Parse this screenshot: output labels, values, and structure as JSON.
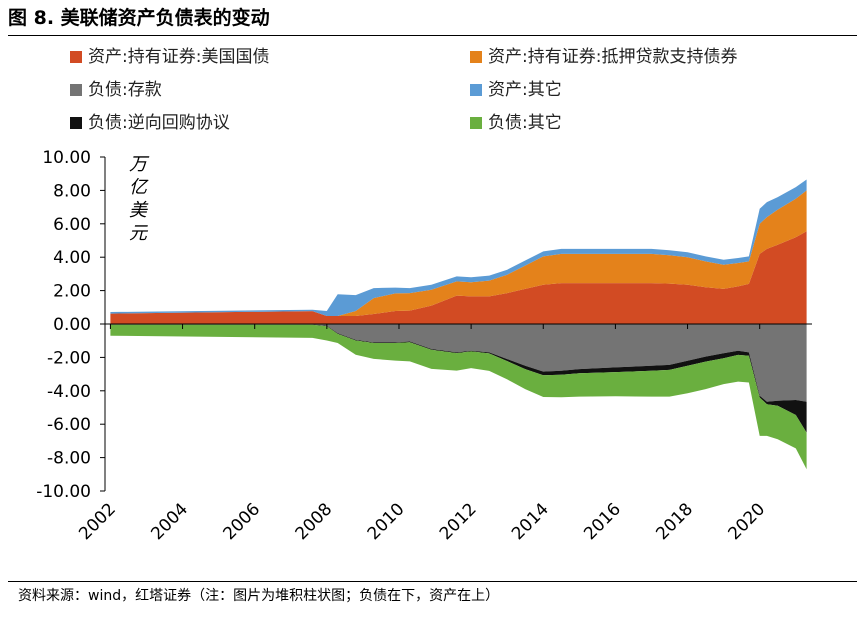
{
  "figure_title": "图 8. 美联储资产负债表的变动",
  "source_note": "资料来源：wind，红塔证券（注：图片为堆积柱状图；负债在下，资产在上）",
  "chart_data": {
    "type": "area",
    "stacked": true,
    "ylabel": "万亿美元",
    "ylim": [
      -10,
      10
    ],
    "yticks": [
      "10.00",
      "8.00",
      "6.00",
      "4.00",
      "2.00",
      "0.00",
      "-2.00",
      "-4.00",
      "-6.00",
      "-8.00",
      "-10.00"
    ],
    "xticks": [
      "2002",
      "2004",
      "2006",
      "2008",
      "2010",
      "2012",
      "2014",
      "2016",
      "2018",
      "2020"
    ],
    "x": [
      2002.0,
      2007.6,
      2008.0,
      2008.3,
      2008.8,
      2009.3,
      2009.9,
      2010.3,
      2010.9,
      2011.6,
      2012.0,
      2012.5,
      2013.0,
      2013.5,
      2014.0,
      2014.5,
      2015.0,
      2016.0,
      2017.0,
      2017.5,
      2018.0,
      2018.5,
      2019.0,
      2019.4,
      2019.7,
      2020.0,
      2020.2,
      2020.5,
      2021.0,
      2021.3
    ],
    "series": [
      {
        "name": "资产:持有证券:美国国债",
        "color": "#D24B23",
        "side": "asset",
        "values": [
          0.62,
          0.77,
          0.48,
          0.48,
          0.48,
          0.6,
          0.78,
          0.8,
          1.1,
          1.7,
          1.65,
          1.65,
          1.85,
          2.1,
          2.35,
          2.45,
          2.45,
          2.45,
          2.45,
          2.42,
          2.35,
          2.2,
          2.1,
          2.25,
          2.4,
          4.2,
          4.5,
          4.75,
          5.2,
          5.55
        ]
      },
      {
        "name": "资产:持有证券:抵押贷款支持债券",
        "color": "#E4821B",
        "side": "asset",
        "values": [
          0,
          0,
          0,
          0,
          0.3,
          0.95,
          1.05,
          1.05,
          0.95,
          0.85,
          0.85,
          0.95,
          1.1,
          1.4,
          1.7,
          1.75,
          1.75,
          1.75,
          1.75,
          1.7,
          1.65,
          1.55,
          1.45,
          1.4,
          1.35,
          1.8,
          1.9,
          2.1,
          2.3,
          2.45
        ]
      },
      {
        "name": "资产:其它",
        "color": "#5B9BD5",
        "side": "asset",
        "values": [
          0.1,
          0.08,
          0.3,
          1.3,
          0.95,
          0.6,
          0.35,
          0.3,
          0.3,
          0.3,
          0.3,
          0.3,
          0.3,
          0.3,
          0.3,
          0.3,
          0.3,
          0.3,
          0.3,
          0.3,
          0.3,
          0.3,
          0.3,
          0.3,
          0.3,
          0.9,
          0.9,
          0.75,
          0.7,
          0.65
        ]
      },
      {
        "name": "负债:存款",
        "color": "#747474",
        "side": "liability",
        "values": [
          0.03,
          0.03,
          0.1,
          0.55,
          0.95,
          1.1,
          1.1,
          1.05,
          1.5,
          1.7,
          1.6,
          1.7,
          2.1,
          2.5,
          2.85,
          2.8,
          2.7,
          2.6,
          2.5,
          2.45,
          2.2,
          1.95,
          1.75,
          1.6,
          1.7,
          4.3,
          4.65,
          4.6,
          4.55,
          4.65
        ]
      },
      {
        "name": "负债:逆向回购协议",
        "color": "#111111",
        "side": "liability",
        "values": [
          0.02,
          0.02,
          0.04,
          0.04,
          0.04,
          0.04,
          0.04,
          0.04,
          0.04,
          0.04,
          0.04,
          0.06,
          0.12,
          0.2,
          0.22,
          0.24,
          0.25,
          0.28,
          0.3,
          0.3,
          0.3,
          0.3,
          0.3,
          0.25,
          0.2,
          0.1,
          0.15,
          0.3,
          0.9,
          1.85
        ]
      },
      {
        "name": "负债:其它",
        "color": "#6AAF3F",
        "side": "liability",
        "values": [
          0.65,
          0.78,
          0.85,
          0.55,
          0.85,
          0.95,
          1.05,
          1.15,
          1.15,
          1.05,
          1.0,
          1.05,
          1.1,
          1.2,
          1.3,
          1.35,
          1.4,
          1.45,
          1.55,
          1.6,
          1.65,
          1.65,
          1.55,
          1.6,
          1.6,
          2.3,
          1.9,
          2.0,
          2.0,
          2.2
        ]
      }
    ],
    "legend_layout": "two-column-top",
    "grid": false
  }
}
